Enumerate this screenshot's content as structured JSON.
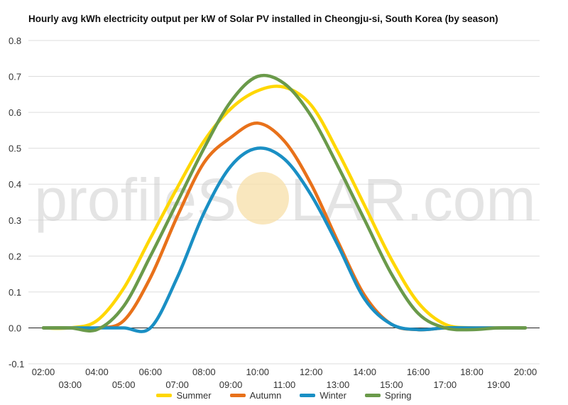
{
  "title": "Hourly avg kWh electricity output per kW of Solar PV installed in Cheongju-si, South Korea (by season)",
  "watermark": {
    "text_left": "profileS",
    "text_right": "LAR.com"
  },
  "chart_data": {
    "type": "line",
    "title": "Hourly avg kWh electricity output per kW of Solar PV installed in Cheongju-si, South Korea (by season)",
    "xlabel": "",
    "ylabel": "",
    "x": [
      "02:00",
      "03:00",
      "04:00",
      "05:00",
      "06:00",
      "07:00",
      "08:00",
      "09:00",
      "10:00",
      "11:00",
      "12:00",
      "13:00",
      "14:00",
      "15:00",
      "16:00",
      "17:00",
      "18:00",
      "19:00",
      "20:00"
    ],
    "y_ticks": [
      "-0.1",
      "0.0",
      "0.1",
      "0.2",
      "0.3",
      "0.4",
      "0.5",
      "0.6",
      "0.7",
      "0.8"
    ],
    "ylim": [
      -0.1,
      0.8
    ],
    "grid": true,
    "legend_position": "bottom",
    "series": [
      {
        "name": "Summer",
        "color": "#FFD700",
        "values": [
          0,
          0,
          0.02,
          0.11,
          0.25,
          0.39,
          0.52,
          0.61,
          0.66,
          0.67,
          0.62,
          0.49,
          0.34,
          0.19,
          0.07,
          0.01,
          0,
          0,
          0
        ]
      },
      {
        "name": "Autumn",
        "color": "#E8711A",
        "values": [
          0,
          0,
          0,
          0.02,
          0.14,
          0.31,
          0.46,
          0.53,
          0.57,
          0.52,
          0.4,
          0.24,
          0.09,
          0.01,
          -0.005,
          0,
          0,
          0,
          0
        ]
      },
      {
        "name": "Winter",
        "color": "#1A8FC4",
        "values": [
          0,
          0,
          0,
          0,
          0,
          0.14,
          0.32,
          0.45,
          0.5,
          0.47,
          0.37,
          0.23,
          0.08,
          0.01,
          -0.005,
          0,
          0,
          0,
          0
        ]
      },
      {
        "name": "Spring",
        "color": "#6A9A4A",
        "values": [
          0,
          0,
          -0.005,
          0.06,
          0.2,
          0.35,
          0.5,
          0.63,
          0.7,
          0.68,
          0.59,
          0.45,
          0.3,
          0.15,
          0.04,
          0,
          -0.005,
          0,
          0
        ]
      }
    ]
  }
}
